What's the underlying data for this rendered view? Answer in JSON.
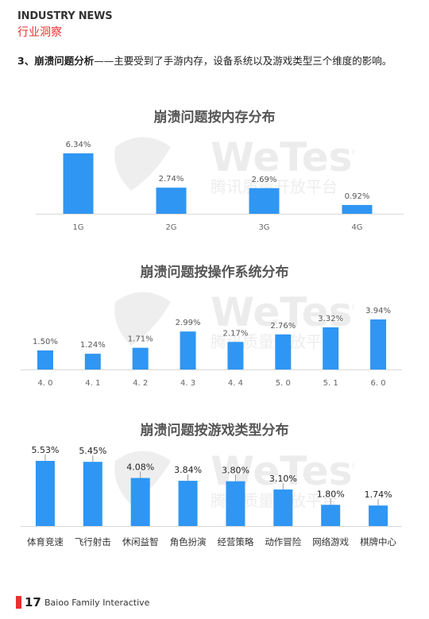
{
  "header": {
    "title_en": "INDUSTRY NEWS",
    "title_zh": "行业洞察"
  },
  "intro": {
    "lead": "3、崩溃问题分析",
    "text": "——主要受到了手游内存，设备系统以及游戏类型三个维度的影响。"
  },
  "watermark": {
    "brand": "WeTest",
    "sub": "腾讯质量开放平台"
  },
  "chart_data": [
    {
      "type": "bar",
      "title": "崩溃问题按内存分布",
      "categories": [
        "1G",
        "2G",
        "3G",
        "4G"
      ],
      "values": [
        6.34,
        2.74,
        2.69,
        0.92
      ],
      "value_labels": [
        "6.34%",
        "2.74%",
        "2.69%",
        "0.92%"
      ],
      "unit": "%",
      "color": "#2f96f3"
    },
    {
      "type": "bar",
      "title": "崩溃问题按操作系统分布",
      "categories": [
        "4. 0",
        "4. 1",
        "4. 2",
        "4. 3",
        "4. 4",
        "5. 0",
        "5. 1",
        "6. 0"
      ],
      "values": [
        1.5,
        1.24,
        1.71,
        2.99,
        2.17,
        2.76,
        3.32,
        3.94
      ],
      "value_labels": [
        "1.50%",
        "1.24%",
        "1.71%",
        "2.99%",
        "2.17%",
        "2.76%",
        "3.32%",
        "3.94%"
      ],
      "unit": "%",
      "color": "#2f96f3"
    },
    {
      "type": "bar",
      "title": "崩溃问题按游戏类型分布",
      "categories": [
        "体育竞速",
        "飞行射击",
        "休闲益智",
        "角色扮演",
        "经营策略",
        "动作冒险",
        "网络游戏",
        "棋牌中心"
      ],
      "values": [
        5.53,
        5.45,
        4.08,
        3.84,
        3.8,
        3.1,
        1.8,
        1.74
      ],
      "value_labels": [
        "5.53%",
        "5.45%",
        "4.08%",
        "3.84%",
        "3.80%",
        "3.10%",
        "1.80%",
        "1.74%"
      ],
      "unit": "%",
      "color": "#2f96f3"
    }
  ],
  "footer": {
    "page_number": "17",
    "company": "Baioo Family Interactive"
  }
}
